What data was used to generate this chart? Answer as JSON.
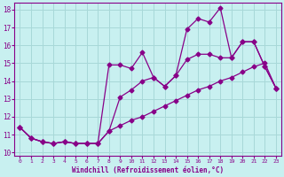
{
  "xlabel": "Windchill (Refroidissement éolien,°C)",
  "background_color": "#c8f0f0",
  "grid_color": "#a8d8d8",
  "line_color": "#880088",
  "x": [
    0,
    1,
    2,
    3,
    4,
    5,
    6,
    7,
    8,
    9,
    10,
    11,
    12,
    13,
    14,
    15,
    16,
    17,
    18,
    19,
    20,
    21,
    22,
    23
  ],
  "line_jagged": [
    11.4,
    10.8,
    10.6,
    10.5,
    10.6,
    10.5,
    10.5,
    10.5,
    14.9,
    14.9,
    14.7,
    15.6,
    14.2,
    13.7,
    14.3,
    16.9,
    17.5,
    17.3,
    18.1,
    15.3,
    16.2,
    16.2,
    14.8,
    13.6
  ],
  "line_mid": [
    11.4,
    10.8,
    10.6,
    10.5,
    10.6,
    10.5,
    10.5,
    10.5,
    11.2,
    13.1,
    13.5,
    14.0,
    14.2,
    13.7,
    14.3,
    15.2,
    15.5,
    15.5,
    15.3,
    15.3,
    16.2,
    16.2,
    14.8,
    13.6
  ],
  "line_trend": [
    11.4,
    10.8,
    10.6,
    10.5,
    10.6,
    10.5,
    10.5,
    10.5,
    11.2,
    11.5,
    11.8,
    12.0,
    12.3,
    12.6,
    12.9,
    13.2,
    13.5,
    13.7,
    14.0,
    14.2,
    14.5,
    14.8,
    15.0,
    13.6
  ],
  "ylim": [
    9.8,
    18.4
  ],
  "xlim": [
    -0.5,
    23.5
  ],
  "yticks": [
    10,
    11,
    12,
    13,
    14,
    15,
    16,
    17,
    18
  ],
  "xticks": [
    0,
    1,
    2,
    3,
    4,
    5,
    6,
    7,
    8,
    9,
    10,
    11,
    12,
    13,
    14,
    15,
    16,
    17,
    18,
    19,
    20,
    21,
    22,
    23
  ]
}
